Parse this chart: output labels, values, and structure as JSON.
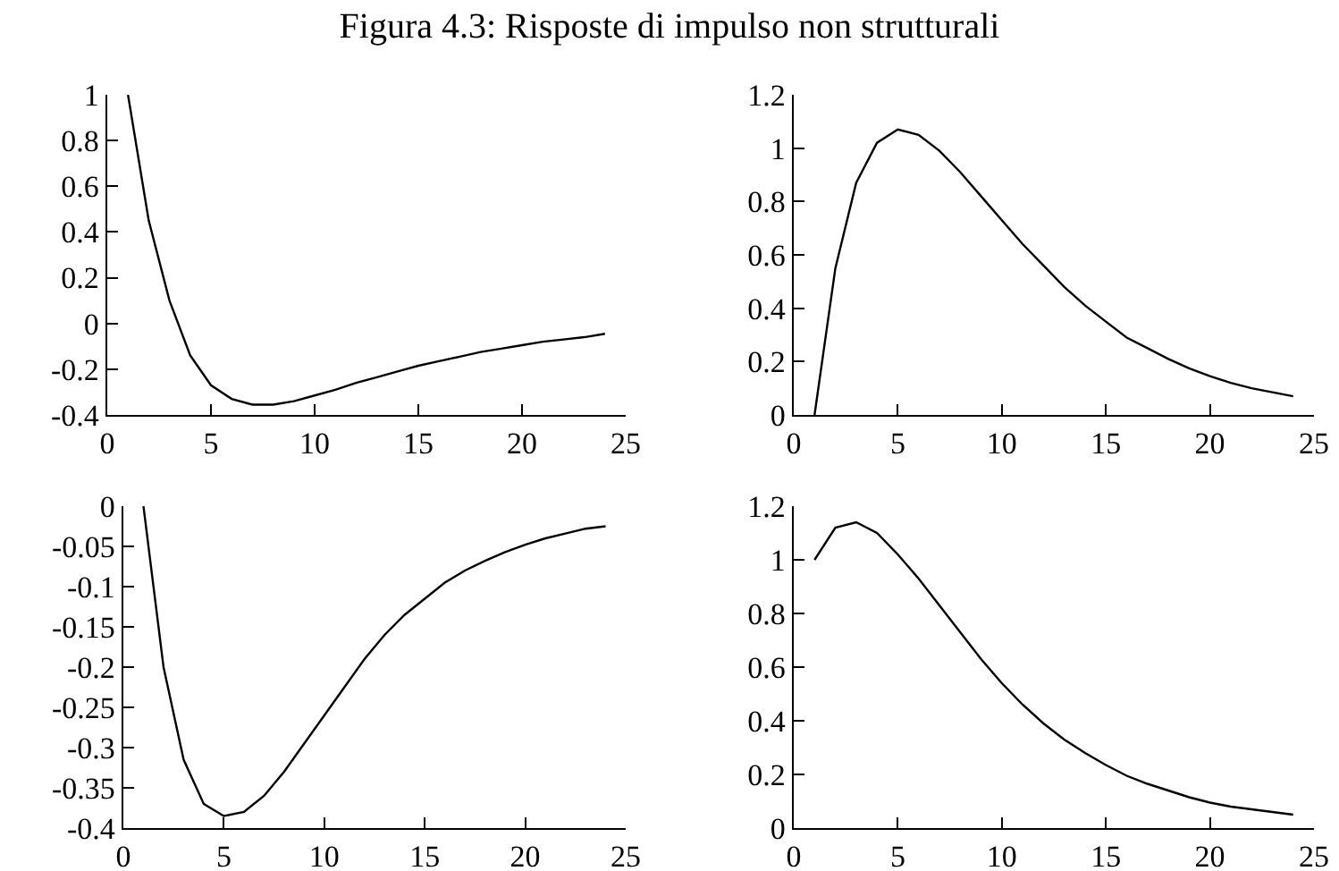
{
  "chart_data": [
    {
      "type": "line",
      "title": "Figura 4.3: Risposte di impulso non strutturali",
      "x": [
        1,
        2,
        3,
        4,
        5,
        6,
        7,
        8,
        9,
        10,
        11,
        12,
        13,
        14,
        15,
        16,
        17,
        18,
        19,
        20,
        21,
        22,
        23,
        24
      ],
      "series": [
        {
          "color": "#000000",
          "values": [
            1,
            0.45,
            0.1,
            -0.14,
            -0.27,
            -0.33,
            -0.355,
            -0.355,
            -0.34,
            -0.315,
            -0.29,
            -0.26,
            -0.235,
            -0.21,
            -0.185,
            -0.165,
            -0.145,
            -0.125,
            -0.11,
            -0.095,
            -0.08,
            -0.07,
            -0.06,
            -0.045
          ]
        }
      ],
      "xlim": [
        0,
        25
      ],
      "xticks": [
        0,
        5,
        10,
        15,
        20,
        25
      ],
      "ylim": [
        -0.4,
        1
      ],
      "yticks": [
        -0.4,
        -0.2,
        0,
        0.2,
        0.4,
        0.6,
        0.8,
        1
      ]
    },
    {
      "type": "line",
      "x": [
        1,
        2,
        3,
        4,
        5,
        6,
        7,
        8,
        9,
        10,
        11,
        12,
        13,
        14,
        15,
        16,
        17,
        18,
        19,
        20,
        21,
        22,
        23,
        24
      ],
      "series": [
        {
          "color": "#000000",
          "values": [
            0,
            0.55,
            0.87,
            1.02,
            1.07,
            1.05,
            0.99,
            0.91,
            0.82,
            0.73,
            0.64,
            0.56,
            0.48,
            0.41,
            0.35,
            0.29,
            0.25,
            0.21,
            0.175,
            0.145,
            0.12,
            0.1,
            0.085,
            0.07
          ]
        }
      ],
      "xlim": [
        0,
        25
      ],
      "xticks": [
        0,
        5,
        10,
        15,
        20,
        25
      ],
      "ylim": [
        0,
        1.2
      ],
      "yticks": [
        0,
        0.2,
        0.4,
        0.6,
        0.8,
        1,
        1.2
      ]
    },
    {
      "type": "line",
      "x": [
        1,
        2,
        3,
        4,
        5,
        6,
        7,
        8,
        9,
        10,
        11,
        12,
        13,
        14,
        15,
        16,
        17,
        18,
        19,
        20,
        21,
        22,
        23,
        24
      ],
      "series": [
        {
          "color": "#000000",
          "values": [
            0,
            -0.2,
            -0.315,
            -0.37,
            -0.385,
            -0.38,
            -0.36,
            -0.33,
            -0.295,
            -0.26,
            -0.225,
            -0.19,
            -0.16,
            -0.135,
            -0.115,
            -0.095,
            -0.08,
            -0.068,
            -0.057,
            -0.048,
            -0.04,
            -0.034,
            -0.028,
            -0.025
          ]
        }
      ],
      "xlim": [
        0,
        25
      ],
      "xticks": [
        0,
        5,
        10,
        15,
        20,
        25
      ],
      "ylim": [
        -0.4,
        0
      ],
      "yticks": [
        -0.4,
        -0.35,
        -0.3,
        -0.25,
        -0.2,
        -0.15,
        -0.1,
        -0.05,
        0
      ]
    },
    {
      "type": "line",
      "x": [
        1,
        2,
        3,
        4,
        5,
        6,
        7,
        8,
        9,
        10,
        11,
        12,
        13,
        14,
        15,
        16,
        17,
        18,
        19,
        20,
        21,
        22,
        23,
        24
      ],
      "series": [
        {
          "color": "#000000",
          "values": [
            1,
            1.12,
            1.14,
            1.1,
            1.02,
            0.93,
            0.83,
            0.73,
            0.63,
            0.54,
            0.46,
            0.39,
            0.33,
            0.28,
            0.235,
            0.195,
            0.165,
            0.14,
            0.115,
            0.095,
            0.08,
            0.07,
            0.06,
            0.05
          ]
        }
      ],
      "xlim": [
        0,
        25
      ],
      "xticks": [
        0,
        5,
        10,
        15,
        20,
        25
      ],
      "ylim": [
        0,
        1.2
      ],
      "yticks": [
        0,
        0.2,
        0.4,
        0.6,
        0.8,
        1,
        1.2
      ]
    }
  ]
}
